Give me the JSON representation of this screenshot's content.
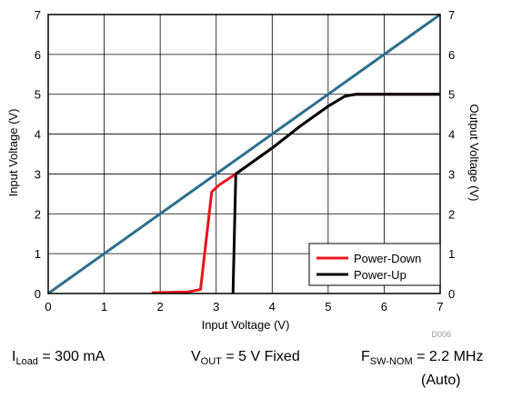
{
  "chart_data": {
    "type": "line",
    "xlabel": "Input Voltage (V)",
    "ylabel": "Input Voltage (V)",
    "y2label": "Output Voltage (V)",
    "xlim": [
      0,
      7
    ],
    "ylim": [
      0,
      7
    ],
    "y2lim": [
      0,
      7
    ],
    "x_ticks": [
      "0",
      "1",
      "2",
      "3",
      "4",
      "5",
      "6",
      "7"
    ],
    "y_ticks": [
      "0",
      "1",
      "2",
      "3",
      "4",
      "5",
      "6",
      "7"
    ],
    "y2_ticks": [
      "0",
      "1",
      "2",
      "3",
      "4",
      "5",
      "6",
      "7"
    ],
    "grid": true,
    "legend_position": "bottom-right",
    "figure_code": "D006",
    "series": [
      {
        "name": "",
        "color": "#2e6e8e",
        "points": [
          [
            0,
            0
          ],
          [
            7,
            7
          ]
        ]
      },
      {
        "name": "Power-Down",
        "color": "#e8151b",
        "points": [
          [
            1.85,
            0.02
          ],
          [
            2.5,
            0.04
          ],
          [
            2.72,
            0.1
          ],
          [
            2.92,
            2.55
          ],
          [
            3.05,
            2.72
          ],
          [
            3.35,
            3.0
          ],
          [
            4.0,
            3.65
          ],
          [
            4.5,
            4.2
          ],
          [
            5.0,
            4.7
          ],
          [
            5.3,
            4.95
          ],
          [
            5.5,
            5.0
          ],
          [
            7.0,
            5.0
          ]
        ]
      },
      {
        "name": "Power-Up",
        "color": "#000000",
        "points": [
          [
            3.3,
            0.0
          ],
          [
            3.35,
            3.0
          ],
          [
            4.0,
            3.65
          ],
          [
            4.5,
            4.2
          ],
          [
            5.0,
            4.7
          ],
          [
            5.3,
            4.95
          ],
          [
            5.5,
            5.0
          ],
          [
            7.0,
            5.0
          ]
        ]
      }
    ]
  },
  "captions": {
    "load": {
      "main": "I",
      "sub": "Load",
      "rest": " = 300 mA"
    },
    "vout": {
      "main": "V",
      "sub": "OUT",
      "rest": " = 5 V Fixed"
    },
    "fsw": {
      "main": "F",
      "sub": "SW-NOM",
      "rest": " = 2.2 MHz"
    },
    "auto": "(Auto)"
  }
}
